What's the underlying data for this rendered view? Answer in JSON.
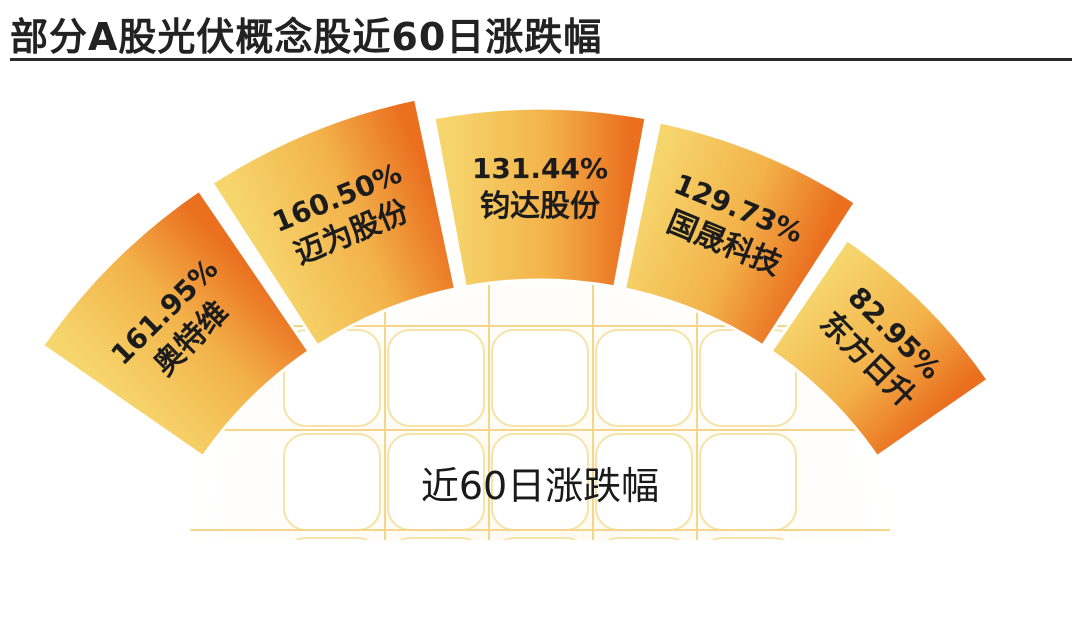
{
  "title": "部分A股光伏概念股近60日涨跌幅",
  "center_label": "近60日涨跌幅",
  "colors": {
    "segment_light": "#f6d56c",
    "segment_dark": "#ea6f1f",
    "grid_light": "#fdf1cf",
    "grid_line": "#f5e3a8"
  },
  "chart_data": {
    "type": "bar",
    "title": "部分A股光伏概念股近60日涨跌幅",
    "categories": [
      "奥特维",
      "迈为股份",
      "钧达股份",
      "国晟科技",
      "东方日升"
    ],
    "values": [
      161.95,
      160.5,
      131.44,
      129.73,
      82.95
    ],
    "value_labels": [
      "161.95%",
      "160.50%",
      "131.44%",
      "129.73%",
      "82.95%"
    ],
    "unit": "%",
    "layout": "semicircular radial bars"
  }
}
